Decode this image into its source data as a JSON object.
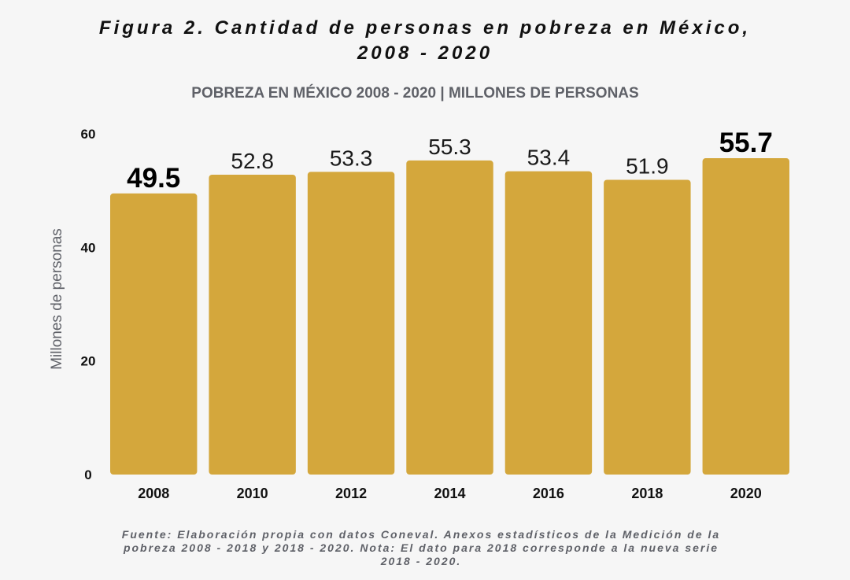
{
  "figure": {
    "title_line1": "Figura 2. Cantidad de personas en pobreza en México,",
    "title_line2": "2008 - 2020"
  },
  "chart_data": {
    "type": "bar",
    "title": "POBREZA EN MÉXICO 2008 - 2020 | MILLONES DE PERSONAS",
    "xlabel": "",
    "ylabel": "Millones de personas",
    "categories": [
      "2008",
      "2010",
      "2012",
      "2014",
      "2016",
      "2018",
      "2020"
    ],
    "values": [
      49.5,
      52.8,
      53.3,
      55.3,
      53.4,
      51.9,
      55.7
    ],
    "value_labels": [
      "49.5",
      "52.8",
      "53.3",
      "55.3",
      "53.4",
      "51.9",
      "55.7"
    ],
    "highlighted_labels": [
      "2008",
      "2020"
    ],
    "ylim": [
      0,
      60
    ],
    "yticks": [
      "0",
      "20",
      "40",
      "60"
    ],
    "grid": false,
    "legend": "none",
    "colors": {
      "bar": "#d4a73c",
      "highlight_label": "#000000",
      "label": "#1a1a1a"
    }
  },
  "source": {
    "line1": "Fuente: Elaboración propia con datos Coneval. Anexos estadísticos de la Medición de la",
    "line2": "pobreza 2008 - 2018 y 2018 - 2020. Nota: El dato para 2018 corresponde a la nueva serie",
    "line3": "2018 - 2020."
  }
}
